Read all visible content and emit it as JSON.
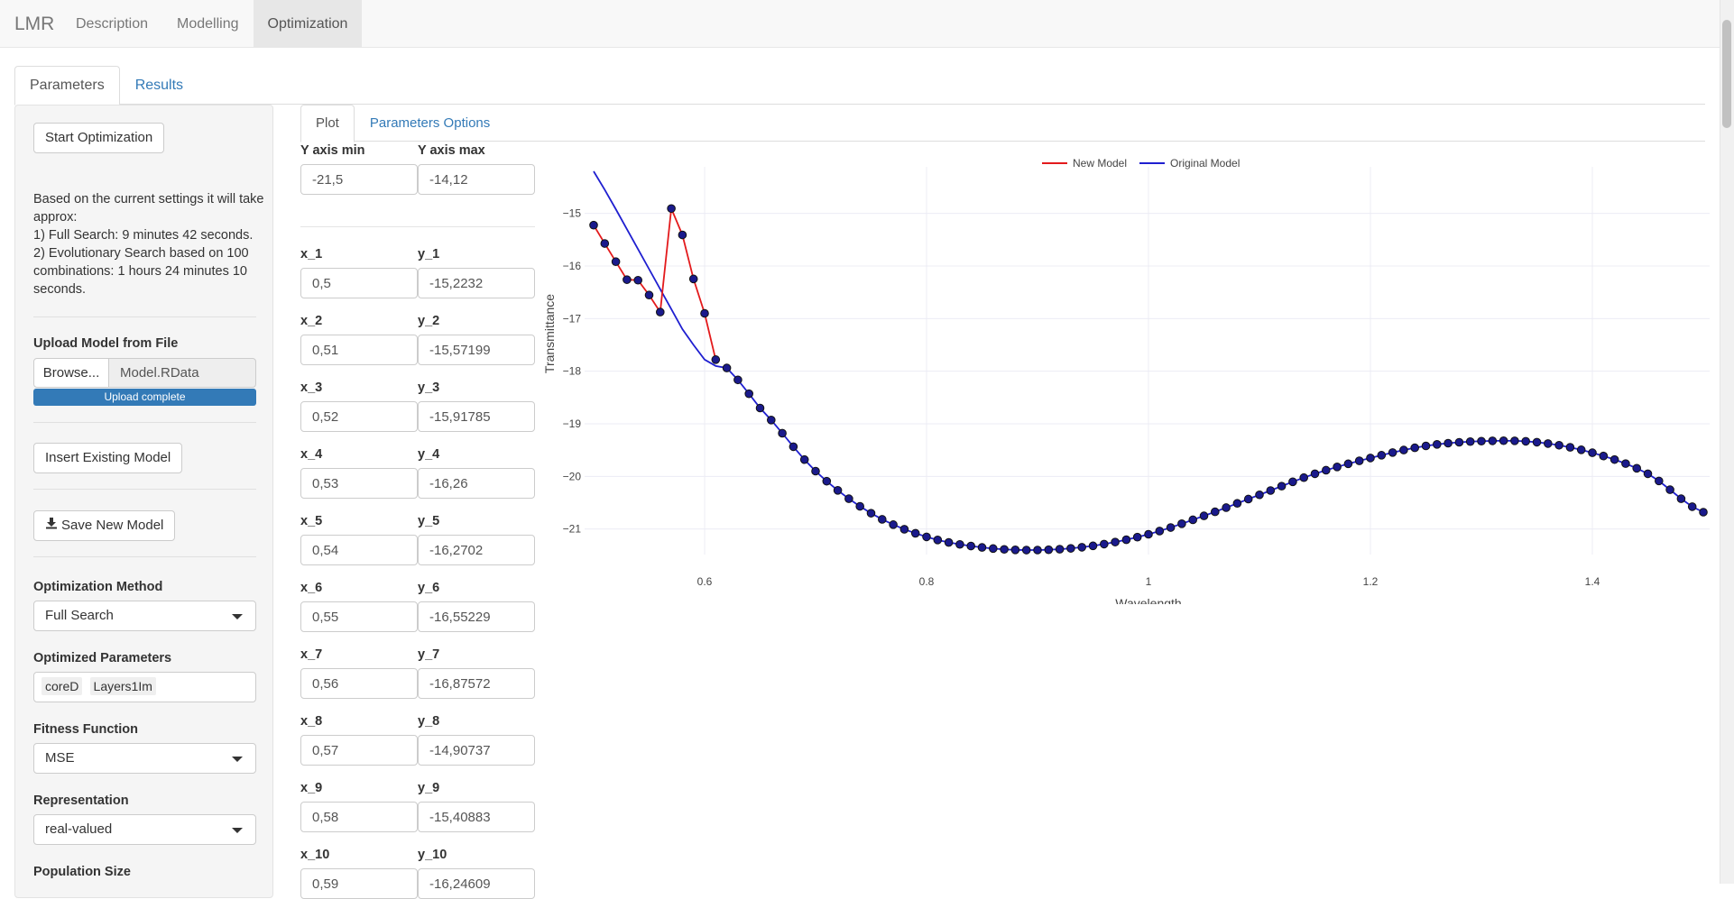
{
  "navbar": {
    "brand": "LMR",
    "items": [
      {
        "label": "Description",
        "active": false
      },
      {
        "label": "Modelling",
        "active": false
      },
      {
        "label": "Optimization",
        "active": true
      }
    ]
  },
  "outer_tabs": [
    {
      "label": "Parameters",
      "active": true
    },
    {
      "label": "Results",
      "active": false
    }
  ],
  "sidebar": {
    "start_button": "Start Optimization",
    "info_lines": [
      "Based on the current settings it will take approx:",
      "1) Full Search: 9 minutes 42 seconds.",
      "2) Evolutionary Search based on 100 combinations: 1 hours 24 minutes 10 seconds."
    ],
    "upload_label": "Upload Model from File",
    "browse_label": "Browse...",
    "file_name": "Model.RData",
    "upload_status": "Upload complete",
    "insert_button": "Insert Existing Model",
    "save_button": "Save New Model",
    "method_label": "Optimization Method",
    "method_value": "Full Search",
    "params_label": "Optimized Parameters",
    "params_chips": [
      "coreD",
      "Layers1Im"
    ],
    "fitness_label": "Fitness Function",
    "fitness_value": "MSE",
    "repr_label": "Representation",
    "repr_value": "real-valued",
    "pop_label": "Population Size"
  },
  "inner_tabs": [
    {
      "label": "Plot",
      "active": true
    },
    {
      "label": "Parameters Options",
      "active": false
    }
  ],
  "axis_inputs": {
    "ymin_label": "Y axis min",
    "ymin_value": "-21,5",
    "ymax_label": "Y axis max",
    "ymax_value": "-14,12"
  },
  "points": [
    {
      "xl": "x_1",
      "xv": "0,5",
      "yl": "y_1",
      "yv": "-15,2232"
    },
    {
      "xl": "x_2",
      "xv": "0,51",
      "yl": "y_2",
      "yv": "-15,57199"
    },
    {
      "xl": "x_3",
      "xv": "0,52",
      "yl": "y_3",
      "yv": "-15,91785"
    },
    {
      "xl": "x_4",
      "xv": "0,53",
      "yl": "y_4",
      "yv": "-16,26"
    },
    {
      "xl": "x_5",
      "xv": "0,54",
      "yl": "y_5",
      "yv": "-16,2702"
    },
    {
      "xl": "x_6",
      "xv": "0,55",
      "yl": "y_6",
      "yv": "-16,55229"
    },
    {
      "xl": "x_7",
      "xv": "0,56",
      "yl": "y_7",
      "yv": "-16,87572"
    },
    {
      "xl": "x_8",
      "xv": "0,57",
      "yl": "y_8",
      "yv": "-14,90737"
    },
    {
      "xl": "x_9",
      "xv": "0,58",
      "yl": "y_9",
      "yv": "-15,40883"
    },
    {
      "xl": "x_10",
      "xv": "0,59",
      "yl": "y_10",
      "yv": "-16,24609"
    }
  ],
  "chart_data": {
    "type": "line",
    "xlabel": "Wavelength",
    "ylabel": "Transmittance",
    "xlim": [
      0.5,
      1.5
    ],
    "ylim": [
      -21.4,
      -14.2
    ],
    "xticks": [
      0.6,
      0.8,
      1,
      1.2,
      1.4
    ],
    "yticks": [
      -15,
      -16,
      -17,
      -18,
      -19,
      -20,
      -21
    ],
    "legend_position": "top-center",
    "grid": true,
    "colors": {
      "new_model": "#e31a1c",
      "original_model": "#1f1fd0",
      "marker_fill": "#1a1a8c"
    },
    "series": [
      {
        "name": "New Model",
        "x": [
          0.5,
          0.51,
          0.52,
          0.53,
          0.54,
          0.55,
          0.56,
          0.57,
          0.58,
          0.59,
          0.6,
          0.61
        ],
        "y": [
          -15.2232,
          -15.57199,
          -15.91785,
          -16.26,
          -16.2702,
          -16.55229,
          -16.87572,
          -14.90737,
          -15.40883,
          -16.24609,
          -16.9,
          -17.78
        ]
      },
      {
        "name": "Original Model",
        "x": [
          0.5,
          0.51,
          0.52,
          0.53,
          0.54,
          0.55,
          0.56,
          0.57,
          0.58,
          0.59,
          0.6,
          0.61
        ],
        "y": [
          -14.2,
          -14.55,
          -14.92,
          -15.3,
          -15.68,
          -16.06,
          -16.44,
          -16.82,
          -17.2,
          -17.5,
          -17.78,
          -17.9
        ]
      }
    ],
    "marker_points": {
      "x_range": [
        0.61,
        1.5
      ],
      "count": 90,
      "description": "curve samples from 0.61 to 1.5 following the shared model",
      "anchors": [
        [
          0.61,
          -17.78
        ],
        [
          0.65,
          -18.7
        ],
        [
          0.7,
          -19.9
        ],
        [
          0.75,
          -20.7
        ],
        [
          0.8,
          -21.15
        ],
        [
          0.85,
          -21.35
        ],
        [
          0.9,
          -21.4
        ],
        [
          0.95,
          -21.32
        ],
        [
          1.0,
          -21.1
        ],
        [
          1.05,
          -20.75
        ],
        [
          1.1,
          -20.35
        ],
        [
          1.15,
          -19.95
        ],
        [
          1.2,
          -19.65
        ],
        [
          1.25,
          -19.42
        ],
        [
          1.3,
          -19.33
        ],
        [
          1.35,
          -19.35
        ],
        [
          1.4,
          -19.55
        ],
        [
          1.45,
          -19.95
        ],
        [
          1.5,
          -20.68
        ]
      ]
    }
  }
}
